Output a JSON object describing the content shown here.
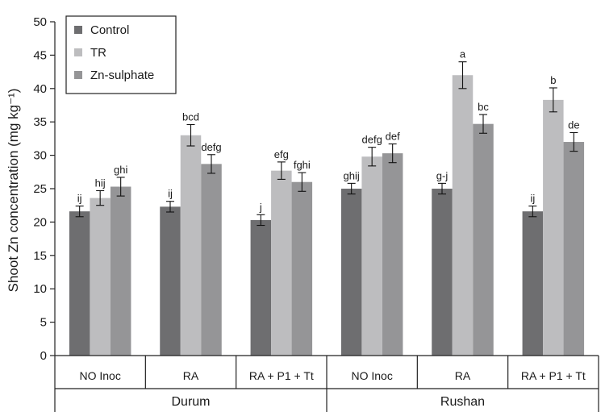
{
  "chart_data": {
    "type": "bar",
    "ylabel": "Shoot Zn concentration (mg kg⁻¹)",
    "ylim": [
      0,
      50
    ],
    "yticks": [
      0,
      5,
      10,
      15,
      20,
      25,
      30,
      35,
      40,
      45,
      50
    ],
    "legend_position": "top-left",
    "error_bars": true,
    "groups": [
      {
        "name": "Durum",
        "categories": [
          "NO Inoc",
          "RA",
          "RA + P1 + Tt"
        ]
      },
      {
        "name": "Rushan",
        "categories": [
          "NO Inoc",
          "RA",
          "RA + P1 + Tt"
        ]
      }
    ],
    "series": [
      {
        "name": "Control",
        "color": "#6e6e70",
        "values": [
          21.6,
          22.3,
          20.3,
          25.0,
          25.0,
          21.6
        ],
        "errors": [
          0.8,
          0.8,
          0.8,
          0.8,
          0.8,
          0.8
        ],
        "labels": [
          "ij",
          "ij",
          "j",
          "ghij",
          "g-j",
          "ij"
        ]
      },
      {
        "name": "TR",
        "color": "#bdbdbf",
        "values": [
          23.6,
          33.0,
          27.7,
          29.8,
          42.0,
          38.3
        ],
        "errors": [
          1.1,
          1.6,
          1.3,
          1.4,
          2.0,
          1.8
        ],
        "labels": [
          "hij",
          "bcd",
          "efg",
          "defg",
          "a",
          "b"
        ]
      },
      {
        "name": "Zn-sulphate",
        "color": "#959597",
        "values": [
          25.3,
          28.7,
          26.0,
          30.3,
          34.7,
          32.0
        ],
        "errors": [
          1.4,
          1.4,
          1.4,
          1.4,
          1.4,
          1.4
        ],
        "labels": [
          "ghi",
          "defg",
          "fghi",
          "def",
          "bc",
          "de"
        ]
      }
    ]
  }
}
